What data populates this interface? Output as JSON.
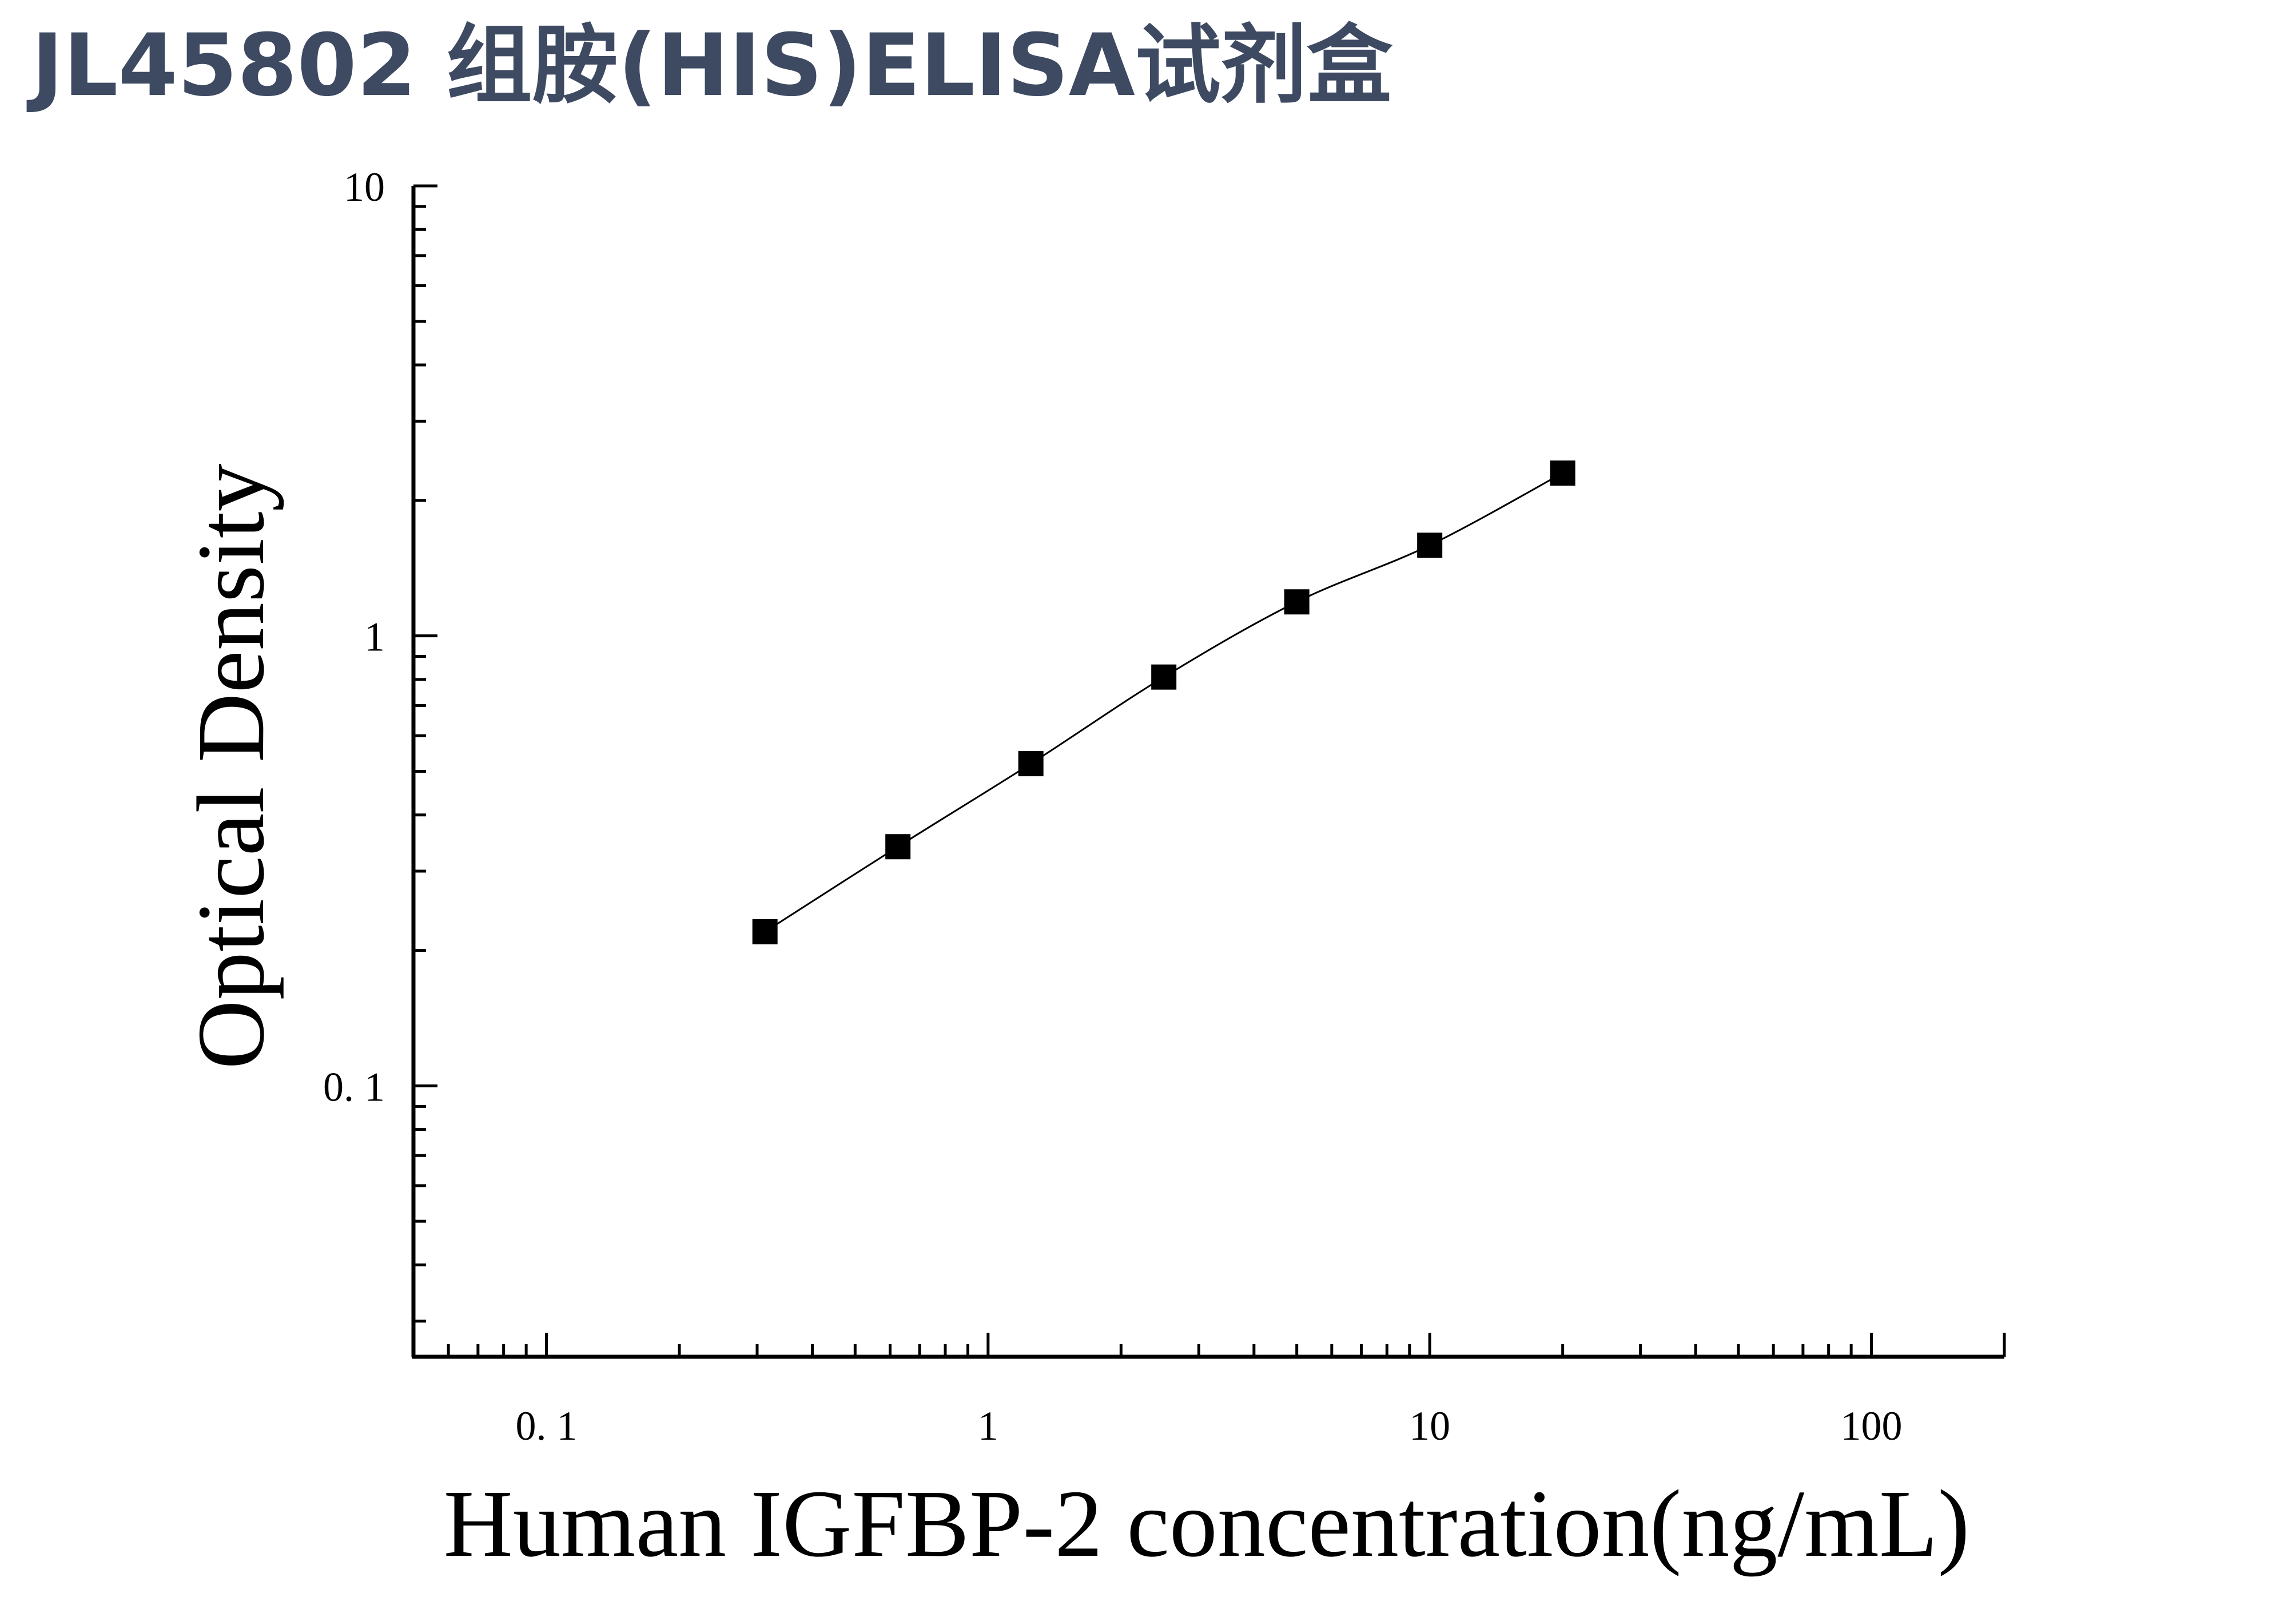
{
  "title": "JL45802 组胺(HIS)ELISA试剂盒",
  "colors": {
    "title": "#3d4a62",
    "axis": "#000000",
    "marker": "#000000",
    "curve": "#000000",
    "background": "#ffffff"
  },
  "chart_data": {
    "type": "scatter",
    "title": "JL45802 组胺(HIS)ELISA试剂盒",
    "xlabel": "Human IGFBP-2 concentration(ng/mL)",
    "ylabel": "Optical Density",
    "xscale": "log",
    "yscale": "log",
    "xlim": [
      0.05,
      200
    ],
    "ylim": [
      0.025,
      10
    ],
    "x_ticks": [
      0.1,
      1,
      10,
      100
    ],
    "x_tick_labels": [
      "0. 1",
      "1",
      "10",
      "100"
    ],
    "y_ticks": [
      0.1,
      1,
      10
    ],
    "y_tick_labels": [
      "0. 1",
      "1",
      "10"
    ],
    "grid": false,
    "legend": "none",
    "marker": "square",
    "fitted_curve": true,
    "series": [
      {
        "x": [
          0.3125,
          0.625,
          1.25,
          2.5,
          5,
          10,
          20
        ],
        "y": [
          0.22,
          0.34,
          0.52,
          0.81,
          1.19,
          1.59,
          2.3
        ]
      }
    ]
  }
}
